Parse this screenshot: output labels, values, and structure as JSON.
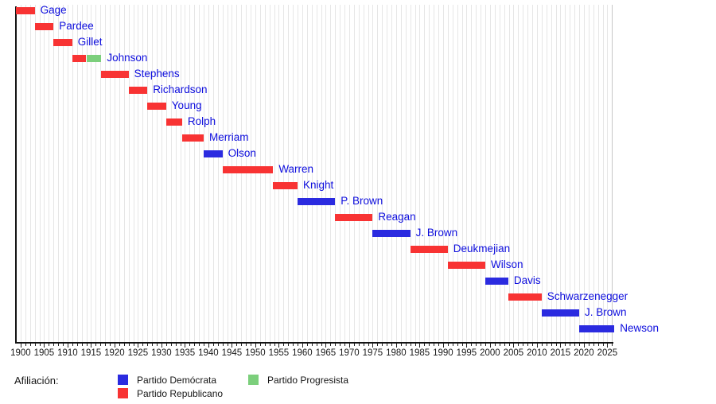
{
  "legend": {
    "title": "Afiliación:",
    "entries": [
      {
        "label": "Partido Demócrata",
        "party": "democrat",
        "column": 0,
        "row": 0
      },
      {
        "label": "Partido Republicano",
        "party": "republican",
        "column": 0,
        "row": 1
      },
      {
        "label": "Partido Progresista",
        "party": "progressive",
        "column": 1,
        "row": 0
      }
    ]
  },
  "colors": {
    "democrat": "#2b2be0",
    "republican": "#f83333",
    "progressive": "#7ccf7c",
    "bar_label_text": "#0d0ddd",
    "axis_text": "#1a1a1a",
    "gridline": "#e6e6e6",
    "axis_line": "#141414"
  },
  "chart_data": {
    "type": "timeline",
    "title": "",
    "x_axis": {
      "min": 1899,
      "max": 2026.5,
      "major_tick_step": 5,
      "minor_tick_step": 1,
      "major_tick_labels": [
        1900,
        1905,
        1910,
        1915,
        1920,
        1925,
        1930,
        1935,
        1940,
        1945,
        1950,
        1955,
        1960,
        1965,
        1970,
        1975,
        1980,
        1985,
        1990,
        1995,
        2000,
        2005,
        2010,
        2015,
        2020,
        2025
      ],
      "grid": true
    },
    "legend_position": "bottom",
    "governors": [
      {
        "name": "Gage",
        "segments": [
          {
            "start": 1899,
            "end": 1903,
            "party": "republican"
          }
        ]
      },
      {
        "name": "Pardee",
        "segments": [
          {
            "start": 1903,
            "end": 1907,
            "party": "republican"
          }
        ]
      },
      {
        "name": "Gillet",
        "segments": [
          {
            "start": 1907,
            "end": 1911,
            "party": "republican"
          }
        ]
      },
      {
        "name": "Johnson",
        "segments": [
          {
            "start": 1911,
            "end": 1914,
            "party": "republican"
          },
          {
            "start": 1914,
            "end": 1917.2,
            "party": "progressive"
          }
        ]
      },
      {
        "name": "Stephens",
        "segments": [
          {
            "start": 1917.2,
            "end": 1923,
            "party": "republican"
          }
        ]
      },
      {
        "name": "Richardson",
        "segments": [
          {
            "start": 1923,
            "end": 1927,
            "party": "republican"
          }
        ]
      },
      {
        "name": "Young",
        "segments": [
          {
            "start": 1927,
            "end": 1931,
            "party": "republican"
          }
        ]
      },
      {
        "name": "Rolph",
        "segments": [
          {
            "start": 1931,
            "end": 1934.4,
            "party": "republican"
          }
        ]
      },
      {
        "name": "Merriam",
        "segments": [
          {
            "start": 1934.4,
            "end": 1939,
            "party": "republican"
          }
        ]
      },
      {
        "name": "Olson",
        "segments": [
          {
            "start": 1939,
            "end": 1943,
            "party": "democrat"
          }
        ]
      },
      {
        "name": "Warren",
        "segments": [
          {
            "start": 1943,
            "end": 1953.8,
            "party": "republican"
          }
        ]
      },
      {
        "name": "Knight",
        "segments": [
          {
            "start": 1953.8,
            "end": 1959,
            "party": "republican"
          }
        ]
      },
      {
        "name": "P. Brown",
        "segments": [
          {
            "start": 1959,
            "end": 1967,
            "party": "democrat"
          }
        ]
      },
      {
        "name": "Reagan",
        "segments": [
          {
            "start": 1967,
            "end": 1975,
            "party": "republican"
          }
        ]
      },
      {
        "name": "J. Brown",
        "segments": [
          {
            "start": 1975,
            "end": 1983,
            "party": "democrat"
          }
        ]
      },
      {
        "name": "Deukmejian",
        "segments": [
          {
            "start": 1983,
            "end": 1991,
            "party": "republican"
          }
        ]
      },
      {
        "name": "Wilson",
        "segments": [
          {
            "start": 1991,
            "end": 1999,
            "party": "republican"
          }
        ]
      },
      {
        "name": "Davis",
        "segments": [
          {
            "start": 1999,
            "end": 2003.9,
            "party": "democrat"
          }
        ]
      },
      {
        "name": "Schwarzenegger",
        "segments": [
          {
            "start": 2003.9,
            "end": 2011,
            "party": "republican"
          }
        ]
      },
      {
        "name": "J. Brown",
        "segments": [
          {
            "start": 2011,
            "end": 2019,
            "party": "democrat"
          }
        ]
      },
      {
        "name": "Newson",
        "segments": [
          {
            "start": 2019,
            "end": 2026.5,
            "party": "democrat"
          }
        ]
      }
    ]
  }
}
